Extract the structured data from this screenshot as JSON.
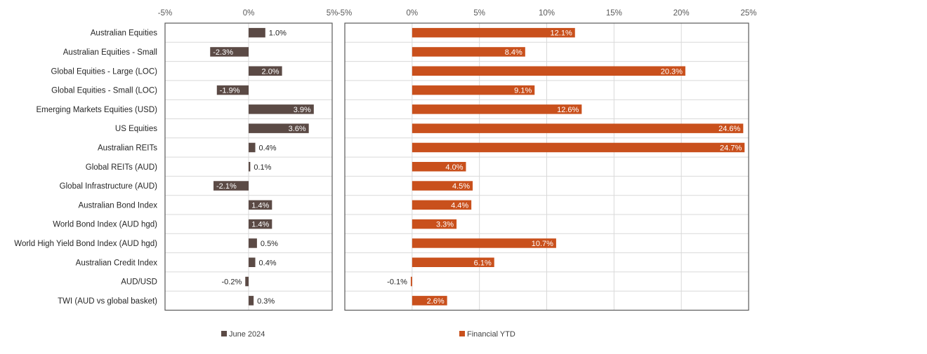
{
  "chart_data": [
    {
      "type": "bar",
      "orientation": "horizontal",
      "categories": [
        "Australian Equities",
        "Australian Equities - Small",
        "Global Equities - Large (LOC)",
        "Global Equities - Small (LOC)",
        "Emerging Markets Equities (USD)",
        "US Equities",
        "Australian REITs",
        "Global REITs (AUD)",
        "Global Infrastructure (AUD)",
        "Australian Bond Index",
        "World Bond Index (AUD hgd)",
        "World High Yield Bond Index (AUD hgd)",
        "Australian Credit Index",
        "AUD/USD",
        "TWI (AUD vs global basket)"
      ],
      "series": [
        {
          "name": "June 2024",
          "color": "#5b4a45",
          "values": [
            1.0,
            -2.3,
            2.0,
            -1.9,
            3.9,
            3.6,
            0.4,
            0.1,
            -2.1,
            1.4,
            1.4,
            0.5,
            0.4,
            -0.2,
            0.3
          ],
          "labels": [
            "1.0%",
            "-2.3%",
            "2.0%",
            "-1.9%",
            "3.9%",
            "3.6%",
            "0.4%",
            "0.1%",
            "-2.1%",
            "1.4%",
            "1.4%",
            "0.5%",
            "0.4%",
            "-0.2%",
            "0.3%"
          ]
        }
      ],
      "xlim": [
        -5,
        5
      ],
      "xticks": [
        -5,
        0,
        5
      ],
      "xtick_labels": [
        "-5%",
        "0%",
        "5%"
      ],
      "grid": true,
      "legend_position": "bottom"
    },
    {
      "type": "bar",
      "orientation": "horizontal",
      "categories": [
        "Australian Equities",
        "Australian Equities - Small",
        "Global Equities - Large (LOC)",
        "Global Equities - Small (LOC)",
        "Emerging Markets Equities (USD)",
        "US Equities",
        "Australian REITs",
        "Global REITs (AUD)",
        "Global Infrastructure (AUD)",
        "Australian Bond Index",
        "World Bond Index (AUD hgd)",
        "World High Yield Bond Index (AUD hgd)",
        "Australian Credit Index",
        "AUD/USD",
        "TWI (AUD vs global basket)"
      ],
      "series": [
        {
          "name": "Financial YTD",
          "color": "#c9501c",
          "values": [
            12.1,
            8.4,
            20.3,
            9.1,
            12.6,
            24.6,
            24.7,
            4.0,
            4.5,
            4.4,
            3.3,
            10.7,
            6.1,
            -0.1,
            2.6
          ],
          "labels": [
            "12.1%",
            "8.4%",
            "20.3%",
            "9.1%",
            "12.6%",
            "24.6%",
            "24.7%",
            "4.0%",
            "4.5%",
            "4.4%",
            "3.3%",
            "10.7%",
            "6.1%",
            "-0.1%",
            "2.6%"
          ]
        }
      ],
      "xlim": [
        -5,
        25
      ],
      "xticks": [
        -5,
        0,
        5,
        10,
        15,
        20,
        25
      ],
      "xtick_labels": [
        "-5%",
        "0%",
        "5%",
        "10%",
        "15%",
        "20%",
        "25%"
      ],
      "grid": true,
      "legend_position": "bottom"
    }
  ]
}
